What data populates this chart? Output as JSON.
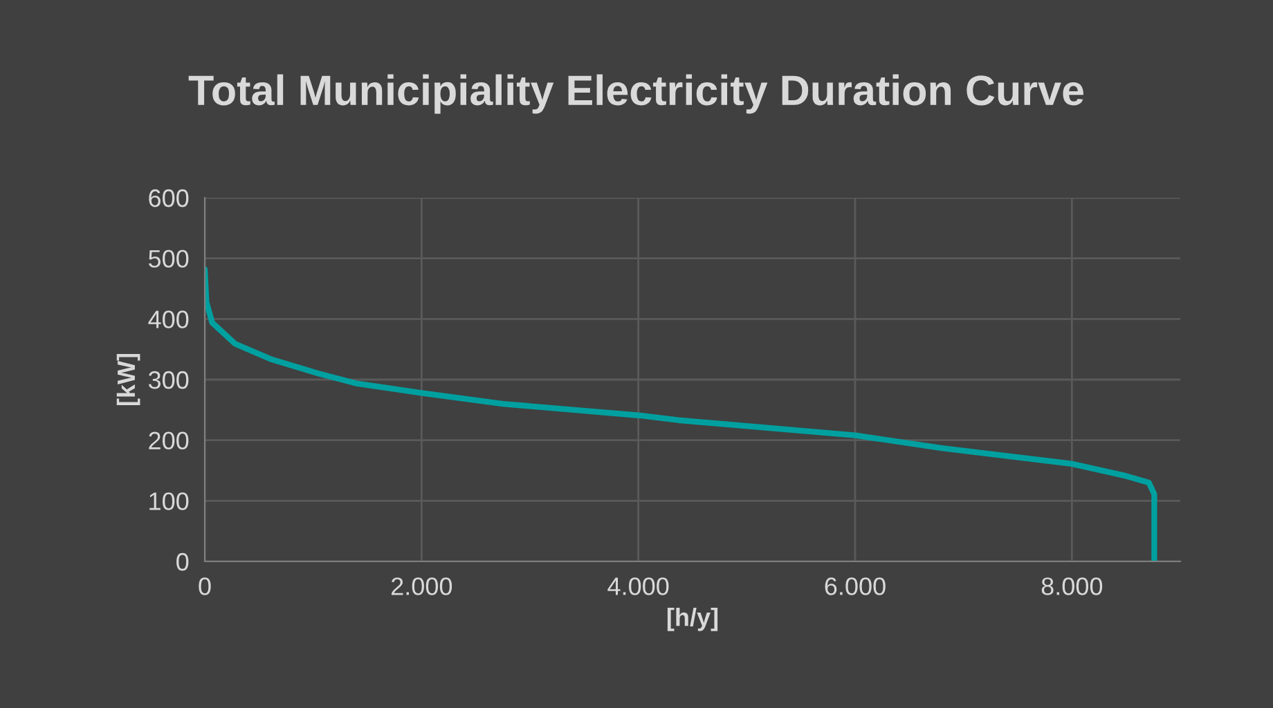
{
  "chart_data": {
    "type": "line",
    "title": "Total Municipiality Electricity Duration Curve",
    "xlabel": "[h/y]",
    "ylabel": "[kW]",
    "x": [
      0,
      15,
      68,
      280,
      620,
      1050,
      1390,
      2000,
      2750,
      4000,
      4370,
      6000,
      6800,
      8000,
      8500,
      8710,
      8760,
      8760
    ],
    "series": [
      {
        "color": "#00a0a0",
        "values": [
          482,
          428,
          394,
          359,
          333,
          310,
          294,
          278,
          260,
          241,
          233,
          208,
          187,
          161,
          141,
          130,
          111,
          0
        ]
      }
    ],
    "xlim": [
      0,
      9000
    ],
    "xticks": [
      0,
      {
        "value": 2000,
        "label": "2.000"
      },
      {
        "value": 4000,
        "label": "4.000"
      },
      {
        "value": 6000,
        "label": "6.000"
      },
      {
        "value": 8000,
        "label": "8.000"
      }
    ],
    "ylim": [
      0,
      600
    ],
    "yticks": [
      0,
      100,
      200,
      300,
      400,
      500,
      600
    ],
    "grid": true,
    "marker": "none",
    "line_style": "solid"
  }
}
